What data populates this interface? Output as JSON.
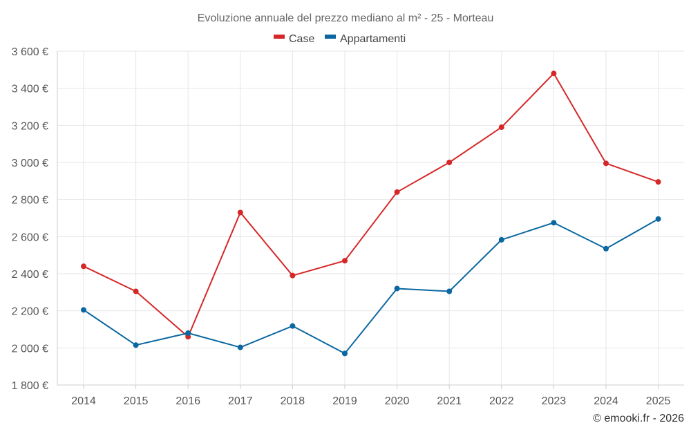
{
  "chart_data": {
    "type": "line",
    "title": "Evoluzione annuale del prezzo mediano al m² - 25 - Morteau",
    "categories": [
      "2014",
      "2015",
      "2016",
      "2017",
      "2018",
      "2019",
      "2020",
      "2021",
      "2022",
      "2023",
      "2024",
      "2025"
    ],
    "series": [
      {
        "name": "Case",
        "color": "#d62728",
        "values": [
          2440,
          2305,
          2060,
          2730,
          2390,
          2470,
          2840,
          3000,
          3190,
          3480,
          2995,
          2895
        ]
      },
      {
        "name": "Appartamenti",
        "color": "#0a67a0",
        "values": [
          2205,
          2015,
          2080,
          2003,
          2118,
          1970,
          2320,
          2305,
          2583,
          2675,
          2535,
          2695
        ]
      }
    ],
    "ylim": [
      1800,
      3600
    ],
    "yticks": [
      1800,
      2000,
      2200,
      2400,
      2600,
      2800,
      3000,
      3200,
      3400,
      3600
    ],
    "ytick_labels": [
      "1 800 €",
      "2 000 €",
      "2 200 €",
      "2 400 €",
      "2 600 €",
      "2 800 €",
      "3 000 €",
      "3 200 €",
      "3 400 €",
      "3 600 €"
    ],
    "xlabel": "",
    "ylabel": "",
    "grid": true,
    "legend_position": "top-center",
    "credit": "© emooki.fr - 2026"
  }
}
